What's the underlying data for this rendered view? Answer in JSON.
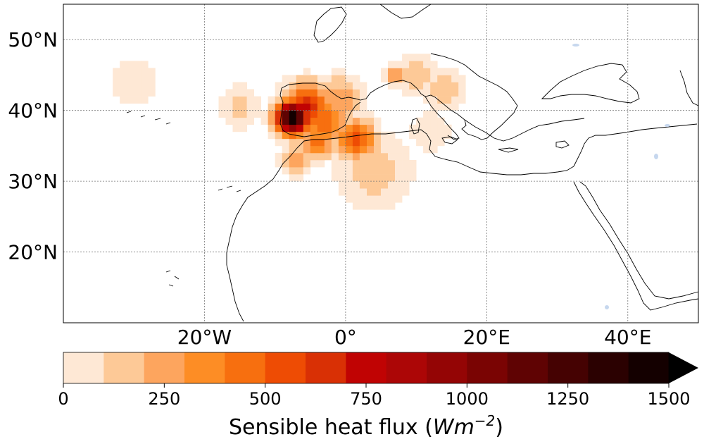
{
  "map": {
    "extent": {
      "lon": [
        -40,
        50
      ],
      "lat": [
        10,
        55
      ]
    },
    "lat_ticks": [
      {
        "value": 20,
        "label": "20°N"
      },
      {
        "value": 30,
        "label": "30°N"
      },
      {
        "value": 40,
        "label": "40°N"
      },
      {
        "value": 50,
        "label": "50°N"
      }
    ],
    "lon_ticks": [
      {
        "value": -20,
        "label": "20°W"
      },
      {
        "value": 0,
        "label": "0°"
      },
      {
        "value": 20,
        "label": "20°E"
      },
      {
        "value": 40,
        "label": "40°E"
      }
    ],
    "gridlines": true,
    "coastline_color": "#000000",
    "lake_color": "#c6d7ee"
  },
  "field": {
    "variable": "Sensible heat flux",
    "hotspots": [
      {
        "lon": -7.5,
        "lat": 39.0,
        "value": 1500,
        "spread": 2.2
      },
      {
        "lon": -5.5,
        "lat": 40.5,
        "value": 700,
        "spread": 3.0
      },
      {
        "lon": -3.0,
        "lat": 38.5,
        "value": 450,
        "spread": 3.5
      },
      {
        "lon": -1.0,
        "lat": 41.5,
        "value": 300,
        "spread": 3.0
      },
      {
        "lon": 1.5,
        "lat": 36.0,
        "value": 600,
        "spread": 2.5
      },
      {
        "lon": -4.0,
        "lat": 35.5,
        "value": 500,
        "spread": 2.0
      },
      {
        "lon": -7.0,
        "lat": 33.0,
        "value": 300,
        "spread": 2.0
      },
      {
        "lon": 4.0,
        "lat": 31.5,
        "value": 150,
        "spread": 5.0
      },
      {
        "lon": 10.0,
        "lat": 45.0,
        "value": 200,
        "spread": 2.5
      },
      {
        "lon": 14.0,
        "lat": 43.0,
        "value": 150,
        "spread": 3.0
      },
      {
        "lon": 7.0,
        "lat": 45.0,
        "value": 250,
        "spread": 1.5
      },
      {
        "lon": -15.0,
        "lat": 40.5,
        "value": 120,
        "spread": 3.0
      },
      {
        "lon": -30.0,
        "lat": 44.0,
        "value": 60,
        "spread": 5.0
      },
      {
        "lon": 12.0,
        "lat": 37.0,
        "value": 100,
        "spread": 3.0
      }
    ]
  },
  "colorbar": {
    "min": 0,
    "max": 1500,
    "step": 100,
    "extend": "max",
    "tick_values": [
      0,
      250,
      500,
      750,
      1000,
      1250,
      1500
    ],
    "tick_labels": [
      "0",
      "250",
      "500",
      "750",
      "1000",
      "1250",
      "1500"
    ],
    "colors": [
      "#fee8d5",
      "#fdc997",
      "#fda55e",
      "#fd8d25",
      "#f76f0f",
      "#ee4c04",
      "#d93005",
      "#c00303",
      "#ac0606",
      "#940505",
      "#7a0403",
      "#5f0303",
      "#450202",
      "#2b0101",
      "#140000"
    ],
    "extend_color": "#000000",
    "label": "Sensible heat flux ",
    "label_units": "Wm",
    "label_exponent": "−2"
  }
}
